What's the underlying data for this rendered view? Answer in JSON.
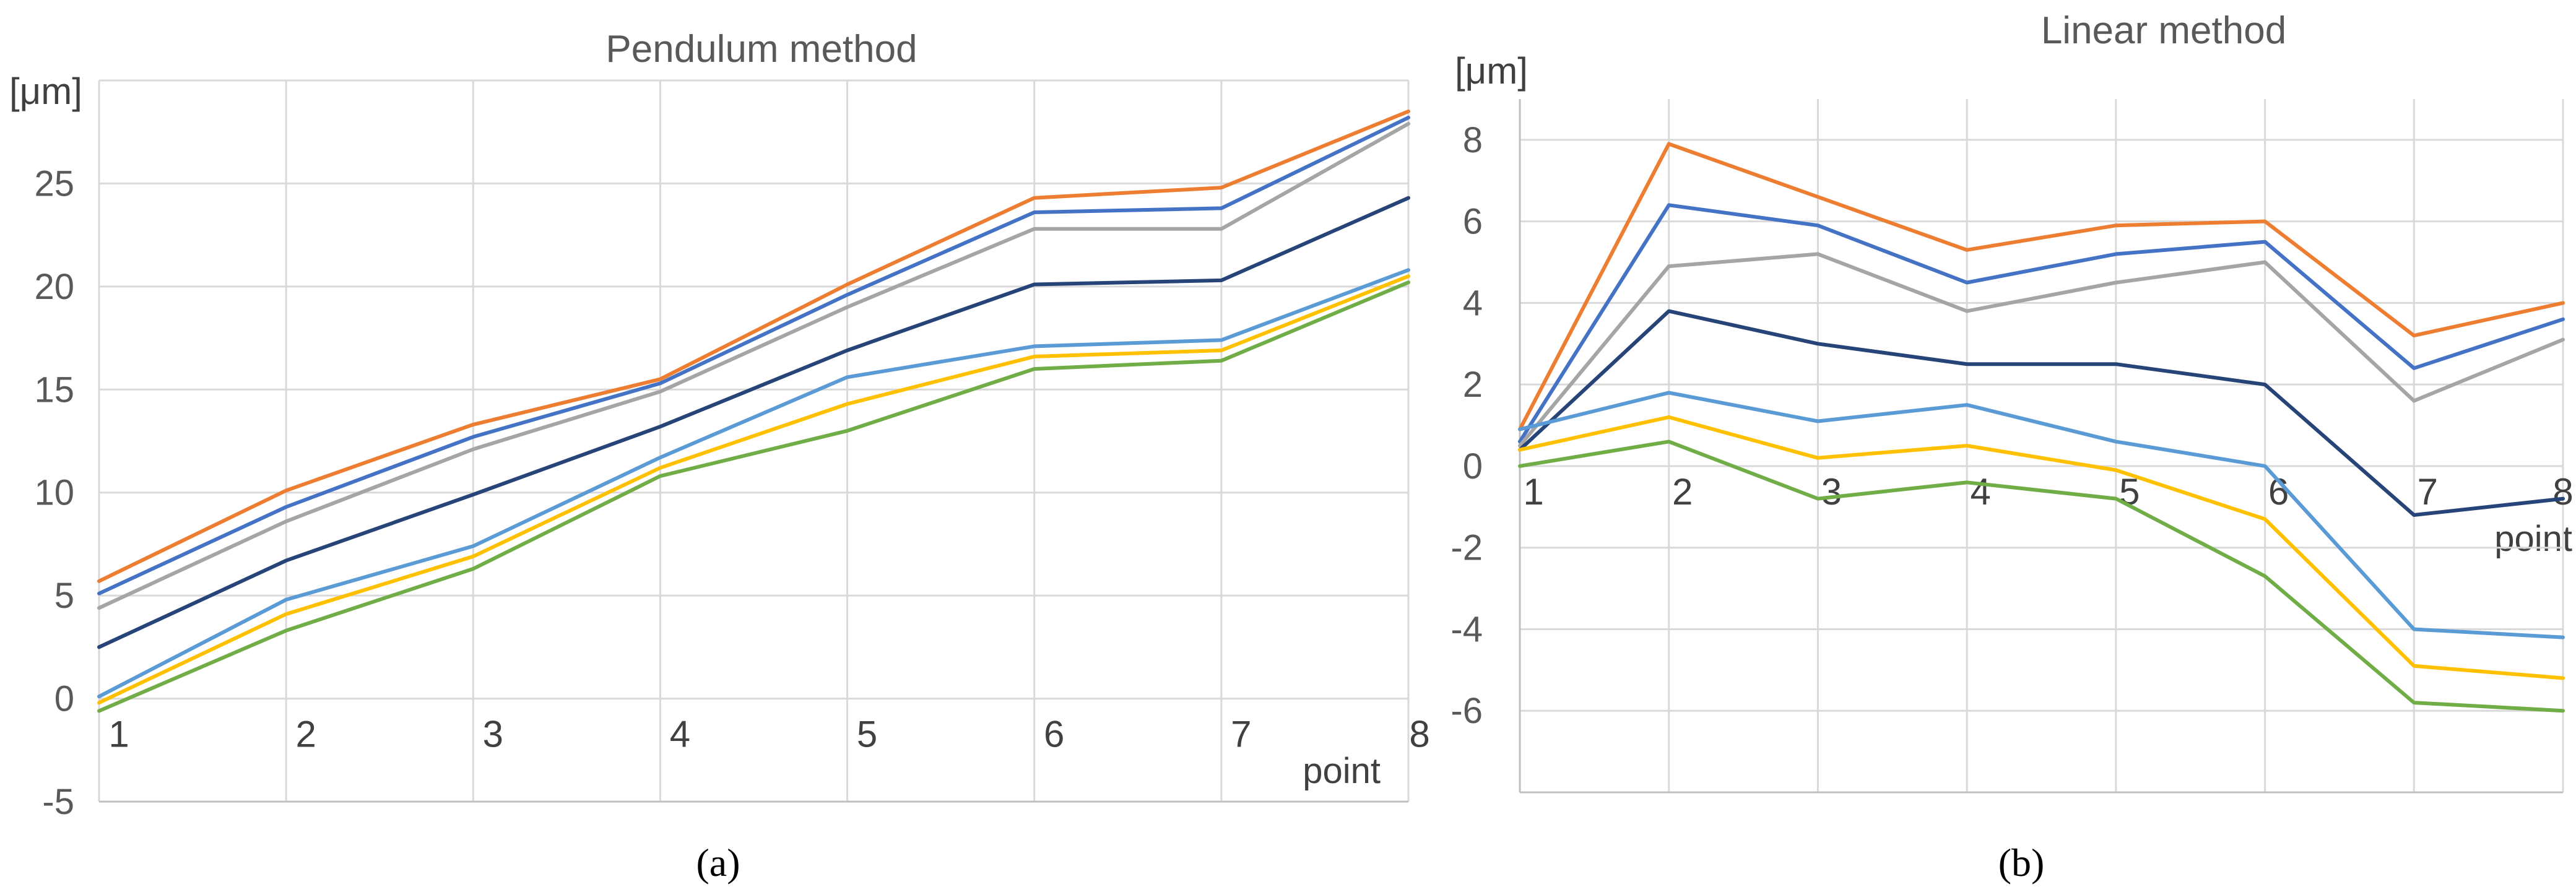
{
  "chart_data": [
    {
      "type": "line",
      "panel_label": "(a)",
      "title": "Pendulum method",
      "xlabel": "point",
      "ylabel": "[μm]",
      "categories": [
        "1",
        "2",
        "3",
        "4",
        "5",
        "6",
        "7",
        "8"
      ],
      "ylim": [
        -5,
        30
      ],
      "y_ticks": [
        "-5",
        "0",
        "5",
        "10",
        "15",
        "20",
        "25"
      ],
      "grid": true,
      "colors": [
        "#ED7D31",
        "#4472C4",
        "#A5A5A5",
        "#264478",
        "#5B9BD5",
        "#FFC000",
        "#70AD47"
      ],
      "series": [
        {
          "values": [
            5.7,
            10.1,
            13.3,
            15.5,
            20.1,
            24.3,
            24.8,
            28.5
          ]
        },
        {
          "values": [
            5.1,
            9.3,
            12.7,
            15.3,
            19.6,
            23.6,
            23.8,
            28.2
          ]
        },
        {
          "values": [
            4.4,
            8.6,
            12.1,
            14.9,
            19.0,
            22.8,
            22.8,
            27.9
          ]
        },
        {
          "values": [
            2.5,
            6.7,
            9.9,
            13.2,
            16.9,
            20.1,
            20.3,
            24.3
          ]
        },
        {
          "values": [
            0.1,
            4.8,
            7.4,
            11.7,
            15.6,
            17.1,
            17.4,
            20.8
          ]
        },
        {
          "values": [
            -0.2,
            4.1,
            6.9,
            11.2,
            14.3,
            16.6,
            16.9,
            20.5
          ]
        },
        {
          "values": [
            -0.6,
            3.3,
            6.3,
            10.8,
            13.0,
            16.0,
            16.4,
            20.2
          ]
        }
      ]
    },
    {
      "type": "line",
      "panel_label": "(b)",
      "title": "Linear method",
      "xlabel": "point",
      "ylabel": "[μm]",
      "categories": [
        "1",
        "2",
        "3",
        "4",
        "5",
        "6",
        "7",
        "8"
      ],
      "ylim": [
        -8,
        9
      ],
      "y_ticks": [
        "-6",
        "-4",
        "-2",
        "0",
        "2",
        "4",
        "6",
        "8"
      ],
      "grid": true,
      "colors": [
        "#ED7D31",
        "#4472C4",
        "#A5A5A5",
        "#264478",
        "#5B9BD5",
        "#FFC000",
        "#70AD47"
      ],
      "series": [
        {
          "values": [
            0.9,
            7.9,
            6.6,
            5.3,
            5.9,
            6.0,
            3.2,
            4.0
          ]
        },
        {
          "values": [
            0.6,
            6.4,
            5.9,
            4.5,
            5.2,
            5.5,
            2.4,
            3.6
          ]
        },
        {
          "values": [
            0.5,
            4.9,
            5.2,
            3.8,
            4.5,
            5.0,
            1.6,
            3.1
          ]
        },
        {
          "values": [
            0.4,
            3.8,
            3.0,
            2.5,
            2.5,
            2.0,
            -1.2,
            -0.8
          ]
        },
        {
          "values": [
            0.9,
            1.8,
            1.1,
            1.5,
            0.6,
            0.0,
            -4.0,
            -4.2
          ]
        },
        {
          "values": [
            0.4,
            1.2,
            0.2,
            0.5,
            -0.1,
            -1.3,
            -4.9,
            -5.2
          ]
        },
        {
          "values": [
            0.0,
            0.6,
            -0.8,
            -0.4,
            -0.8,
            -2.7,
            -5.8,
            -6.0
          ]
        }
      ]
    }
  ]
}
